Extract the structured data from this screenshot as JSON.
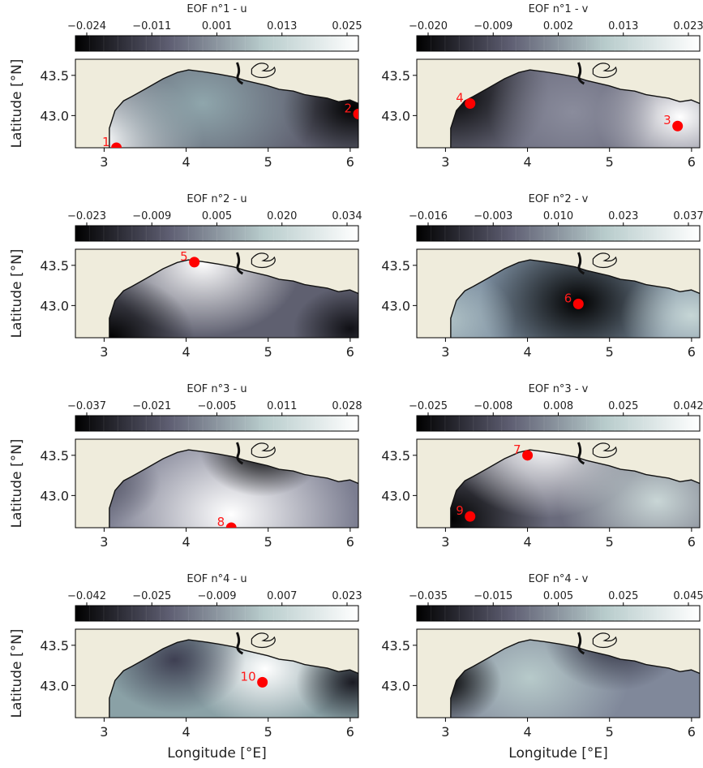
{
  "chart_data": {
    "type": "heatmap",
    "colormap": [
      "#000000",
      "#5f5f73",
      "#b8cccc",
      "#ffffff"
    ],
    "land_color": "#efecdc",
    "xlabel": "Longitude [°E]",
    "ylabel": "Latitude [°N]",
    "x_ticks": [
      3,
      4,
      5,
      6
    ],
    "y_ticks": [
      "43.5",
      "43.0"
    ],
    "xlim": [
      2.65,
      6.1
    ],
    "ylim": [
      42.6,
      43.7
    ],
    "panels": [
      {
        "title": "EOF n°1 - u",
        "colorbar_ticks": [
          "−0.024",
          "−0.011",
          "0.001",
          "0.013",
          "0.025"
        ],
        "markers": [
          {
            "label": "1",
            "lon": 3.15,
            "lat": 42.6
          },
          {
            "label": "2",
            "lon": 6.1,
            "lat": 43.02
          }
        ]
      },
      {
        "title": "EOF n°1 - v",
        "colorbar_ticks": [
          "−0.020",
          "−0.009",
          "0.002",
          "0.013",
          "0.023"
        ],
        "markers": [
          {
            "label": "4",
            "lon": 3.3,
            "lat": 43.15
          },
          {
            "label": "3",
            "lon": 5.83,
            "lat": 42.87
          }
        ]
      },
      {
        "title": "EOF n°2 - u",
        "colorbar_ticks": [
          "−0.023",
          "−0.009",
          "0.005",
          "0.020",
          "0.034"
        ],
        "markers": [
          {
            "label": "5",
            "lon": 4.1,
            "lat": 43.54
          }
        ]
      },
      {
        "title": "EOF n°2 - v",
        "colorbar_ticks": [
          "−0.016",
          "−0.003",
          "0.010",
          "0.023",
          "0.037"
        ],
        "markers": [
          {
            "label": "6",
            "lon": 4.62,
            "lat": 43.02
          }
        ]
      },
      {
        "title": "EOF n°3 - u",
        "colorbar_ticks": [
          "−0.037",
          "−0.021",
          "−0.005",
          "0.011",
          "0.028"
        ],
        "markers": [
          {
            "label": "8",
            "lon": 4.55,
            "lat": 42.6
          }
        ]
      },
      {
        "title": "EOF n°3 - v",
        "colorbar_ticks": [
          "−0.025",
          "−0.008",
          "0.008",
          "0.025",
          "0.042"
        ],
        "markers": [
          {
            "label": "7",
            "lon": 4.0,
            "lat": 43.5
          },
          {
            "label": "9",
            "lon": 3.3,
            "lat": 42.74
          }
        ]
      },
      {
        "title": "EOF n°4 - u",
        "colorbar_ticks": [
          "−0.042",
          "−0.025",
          "−0.009",
          "0.007",
          "0.023"
        ],
        "markers": [
          {
            "label": "10",
            "lon": 4.93,
            "lat": 43.04
          }
        ]
      },
      {
        "title": "EOF n°4 - v",
        "colorbar_ticks": [
          "−0.035",
          "−0.015",
          "0.005",
          "0.025",
          "0.045"
        ],
        "markers": []
      }
    ]
  }
}
